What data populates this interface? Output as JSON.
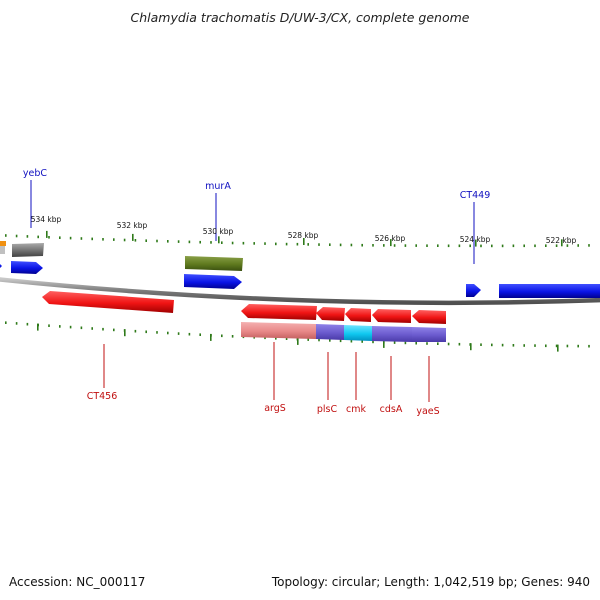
{
  "title": "Chlamydia trachomatis D/UW-3/CX, complete genome",
  "footer": {
    "accession": "Accession: NC_000117",
    "summary": "Topology: circular; Length: 1,042,519 bp; Genes: 940"
  },
  "scale_labels": [
    "534 kbp",
    "532 kbp",
    "530 kbp",
    "528 kbp",
    "526 kbp",
    "524 kbp",
    "522 kbp"
  ],
  "gene_labels_top": [
    "yebC",
    "murA",
    "CT449"
  ],
  "gene_labels_bottom": [
    "CT456",
    "argS",
    "plsC",
    "cmk",
    "cdsA",
    "yaeS"
  ],
  "colors": {
    "forward_blue": "#0a14e6",
    "reverse_red": "#f01414",
    "olive": "#5f7a1e",
    "grey_gene": "#707070",
    "light_red": "#e88888",
    "purple": "#6a5acd",
    "cyan": "#10c8f0",
    "tick_green": "#2f7a1a",
    "label_blue": "#1010c0",
    "label_red": "#c01010",
    "backbone": "#7a7a7a"
  }
}
